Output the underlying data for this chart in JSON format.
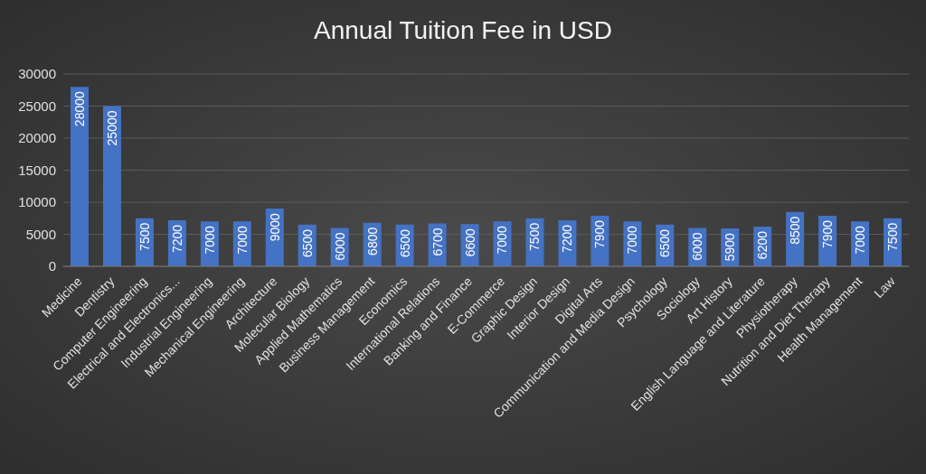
{
  "chart_data": {
    "type": "bar",
    "title": "Annual Tuition Fee in USD",
    "categories": [
      "Medicine",
      "Dentistry",
      "Computer Engineering",
      "Electrical and Electronics...",
      "Industrial Engineering",
      "Mechanical Engineering",
      "Architecture",
      "Molecular Biology",
      "Applied Mathematics",
      "Business Management",
      "Economics",
      "International Relations",
      "Banking and Finance",
      "E-Commerce",
      "Graphic Design",
      "Interior Design",
      "Digital Arts",
      "Communication and Media Design",
      "Psychology",
      "Sociology",
      "Art History",
      "English Language and Literature",
      "Physiotherapy",
      "Nutrition and Diet Therapy",
      "Health Management",
      "Law"
    ],
    "values": [
      28000,
      25000,
      7500,
      7200,
      7000,
      7000,
      9000,
      6500,
      6000,
      6800,
      6500,
      6700,
      6600,
      7000,
      7500,
      7200,
      7900,
      7000,
      6500,
      6000,
      5900,
      6200,
      8500,
      7900,
      7000,
      7500
    ],
    "color": "#4472c4",
    "ylim": [
      0,
      30000
    ],
    "yticks": [
      0,
      5000,
      10000,
      15000,
      20000,
      25000,
      30000
    ],
    "grid": "y",
    "data_labels": true,
    "legend": false
  }
}
